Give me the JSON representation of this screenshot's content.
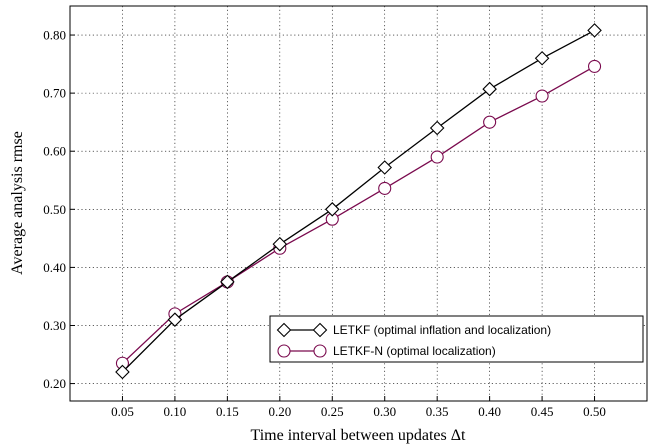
{
  "chart_data": {
    "type": "line",
    "title": "",
    "xlabel": "Time interval between updates Δt",
    "ylabel": "Average analysis rmse",
    "x": [
      0.05,
      0.1,
      0.15,
      0.2,
      0.25,
      0.3,
      0.35,
      0.4,
      0.45,
      0.5
    ],
    "x_tick_labels": [
      "0.05",
      "0.10",
      "0.15",
      "0.20",
      "0.25",
      "0.30",
      "0.35",
      "0.40",
      "0.45",
      "0.50"
    ],
    "xlim": [
      0.0,
      0.55
    ],
    "ylim": [
      0.17,
      0.85
    ],
    "y_ticks": [
      0.2,
      0.3,
      0.4,
      0.5,
      0.6,
      0.7,
      0.8
    ],
    "y_tick_labels": [
      "0.20",
      "0.30",
      "0.40",
      "0.50",
      "0.60",
      "0.70",
      "0.80"
    ],
    "grid": true,
    "legend_position": "bottom-right",
    "series": [
      {
        "name": "LETKF (optimal inflation and localization)",
        "color": "#000000",
        "marker": "diamond",
        "values": [
          0.22,
          0.31,
          0.375,
          0.44,
          0.5,
          0.572,
          0.64,
          0.707,
          0.76,
          0.808
        ]
      },
      {
        "name": "LETKF-N (optimal localization)",
        "color": "#7a0a4e",
        "marker": "circle",
        "values": [
          0.235,
          0.32,
          0.375,
          0.433,
          0.483,
          0.536,
          0.59,
          0.65,
          0.695,
          0.746
        ]
      }
    ]
  }
}
